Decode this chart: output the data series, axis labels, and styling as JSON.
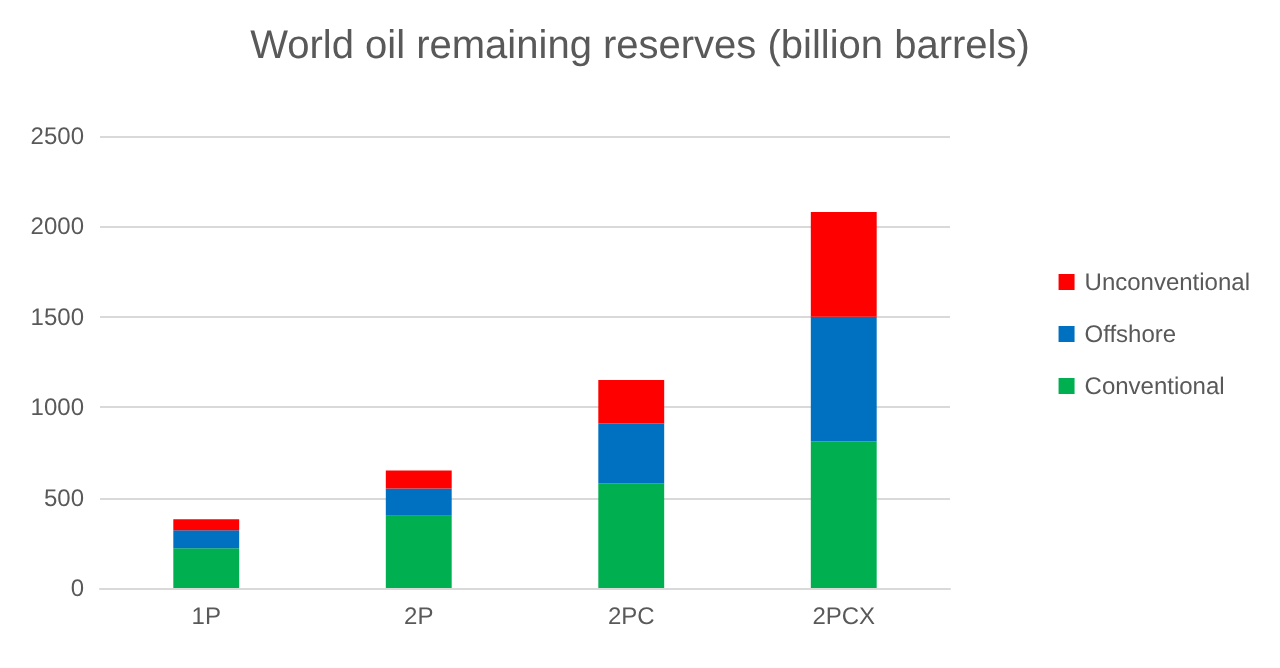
{
  "chart_data": {
    "type": "bar",
    "title": "World oil remaining reserves (billion barrels)",
    "categories": [
      "1P",
      "2P",
      "2PC",
      "2PCX"
    ],
    "stacked": true,
    "series": [
      {
        "name": "Conventional",
        "color": "#00b050",
        "values": [
          220,
          400,
          580,
          810
        ]
      },
      {
        "name": "Offshore",
        "color": "#0070c0",
        "values": [
          100,
          150,
          330,
          690
        ]
      },
      {
        "name": "Unconventional",
        "color": "#ff0000",
        "values": [
          60,
          100,
          240,
          580
        ]
      }
    ],
    "ylim": [
      0,
      2500
    ],
    "yticks": [
      0,
      500,
      1000,
      1500,
      2000,
      2500
    ],
    "grid": "y",
    "legend": "right"
  }
}
